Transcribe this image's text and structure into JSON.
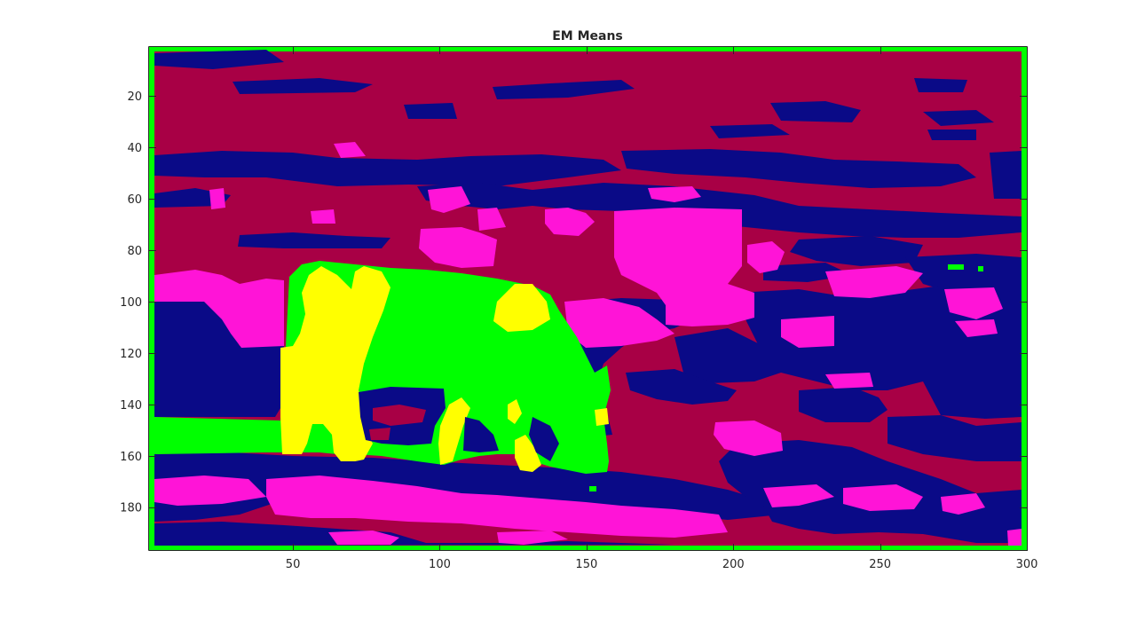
{
  "figure": {
    "title": "EM Means",
    "xaxis": {
      "ticks": [
        50,
        100,
        150,
        200,
        250,
        300
      ],
      "range": [
        1,
        300
      ]
    },
    "yaxis": {
      "ticks": [
        20,
        40,
        60,
        80,
        100,
        120,
        140,
        160,
        180
      ],
      "range": [
        1,
        197
      ],
      "direction": "reverse"
    }
  },
  "segments": [
    {
      "name": "background-maroon",
      "color": "#a80045"
    },
    {
      "name": "shadow-navy",
      "color": "#0a0a87"
    },
    {
      "name": "highlight-magenta",
      "color": "#ff14d7"
    },
    {
      "name": "animal-green",
      "color": "#00ff00"
    },
    {
      "name": "animal-yellow",
      "color": "#ffff00"
    }
  ]
}
